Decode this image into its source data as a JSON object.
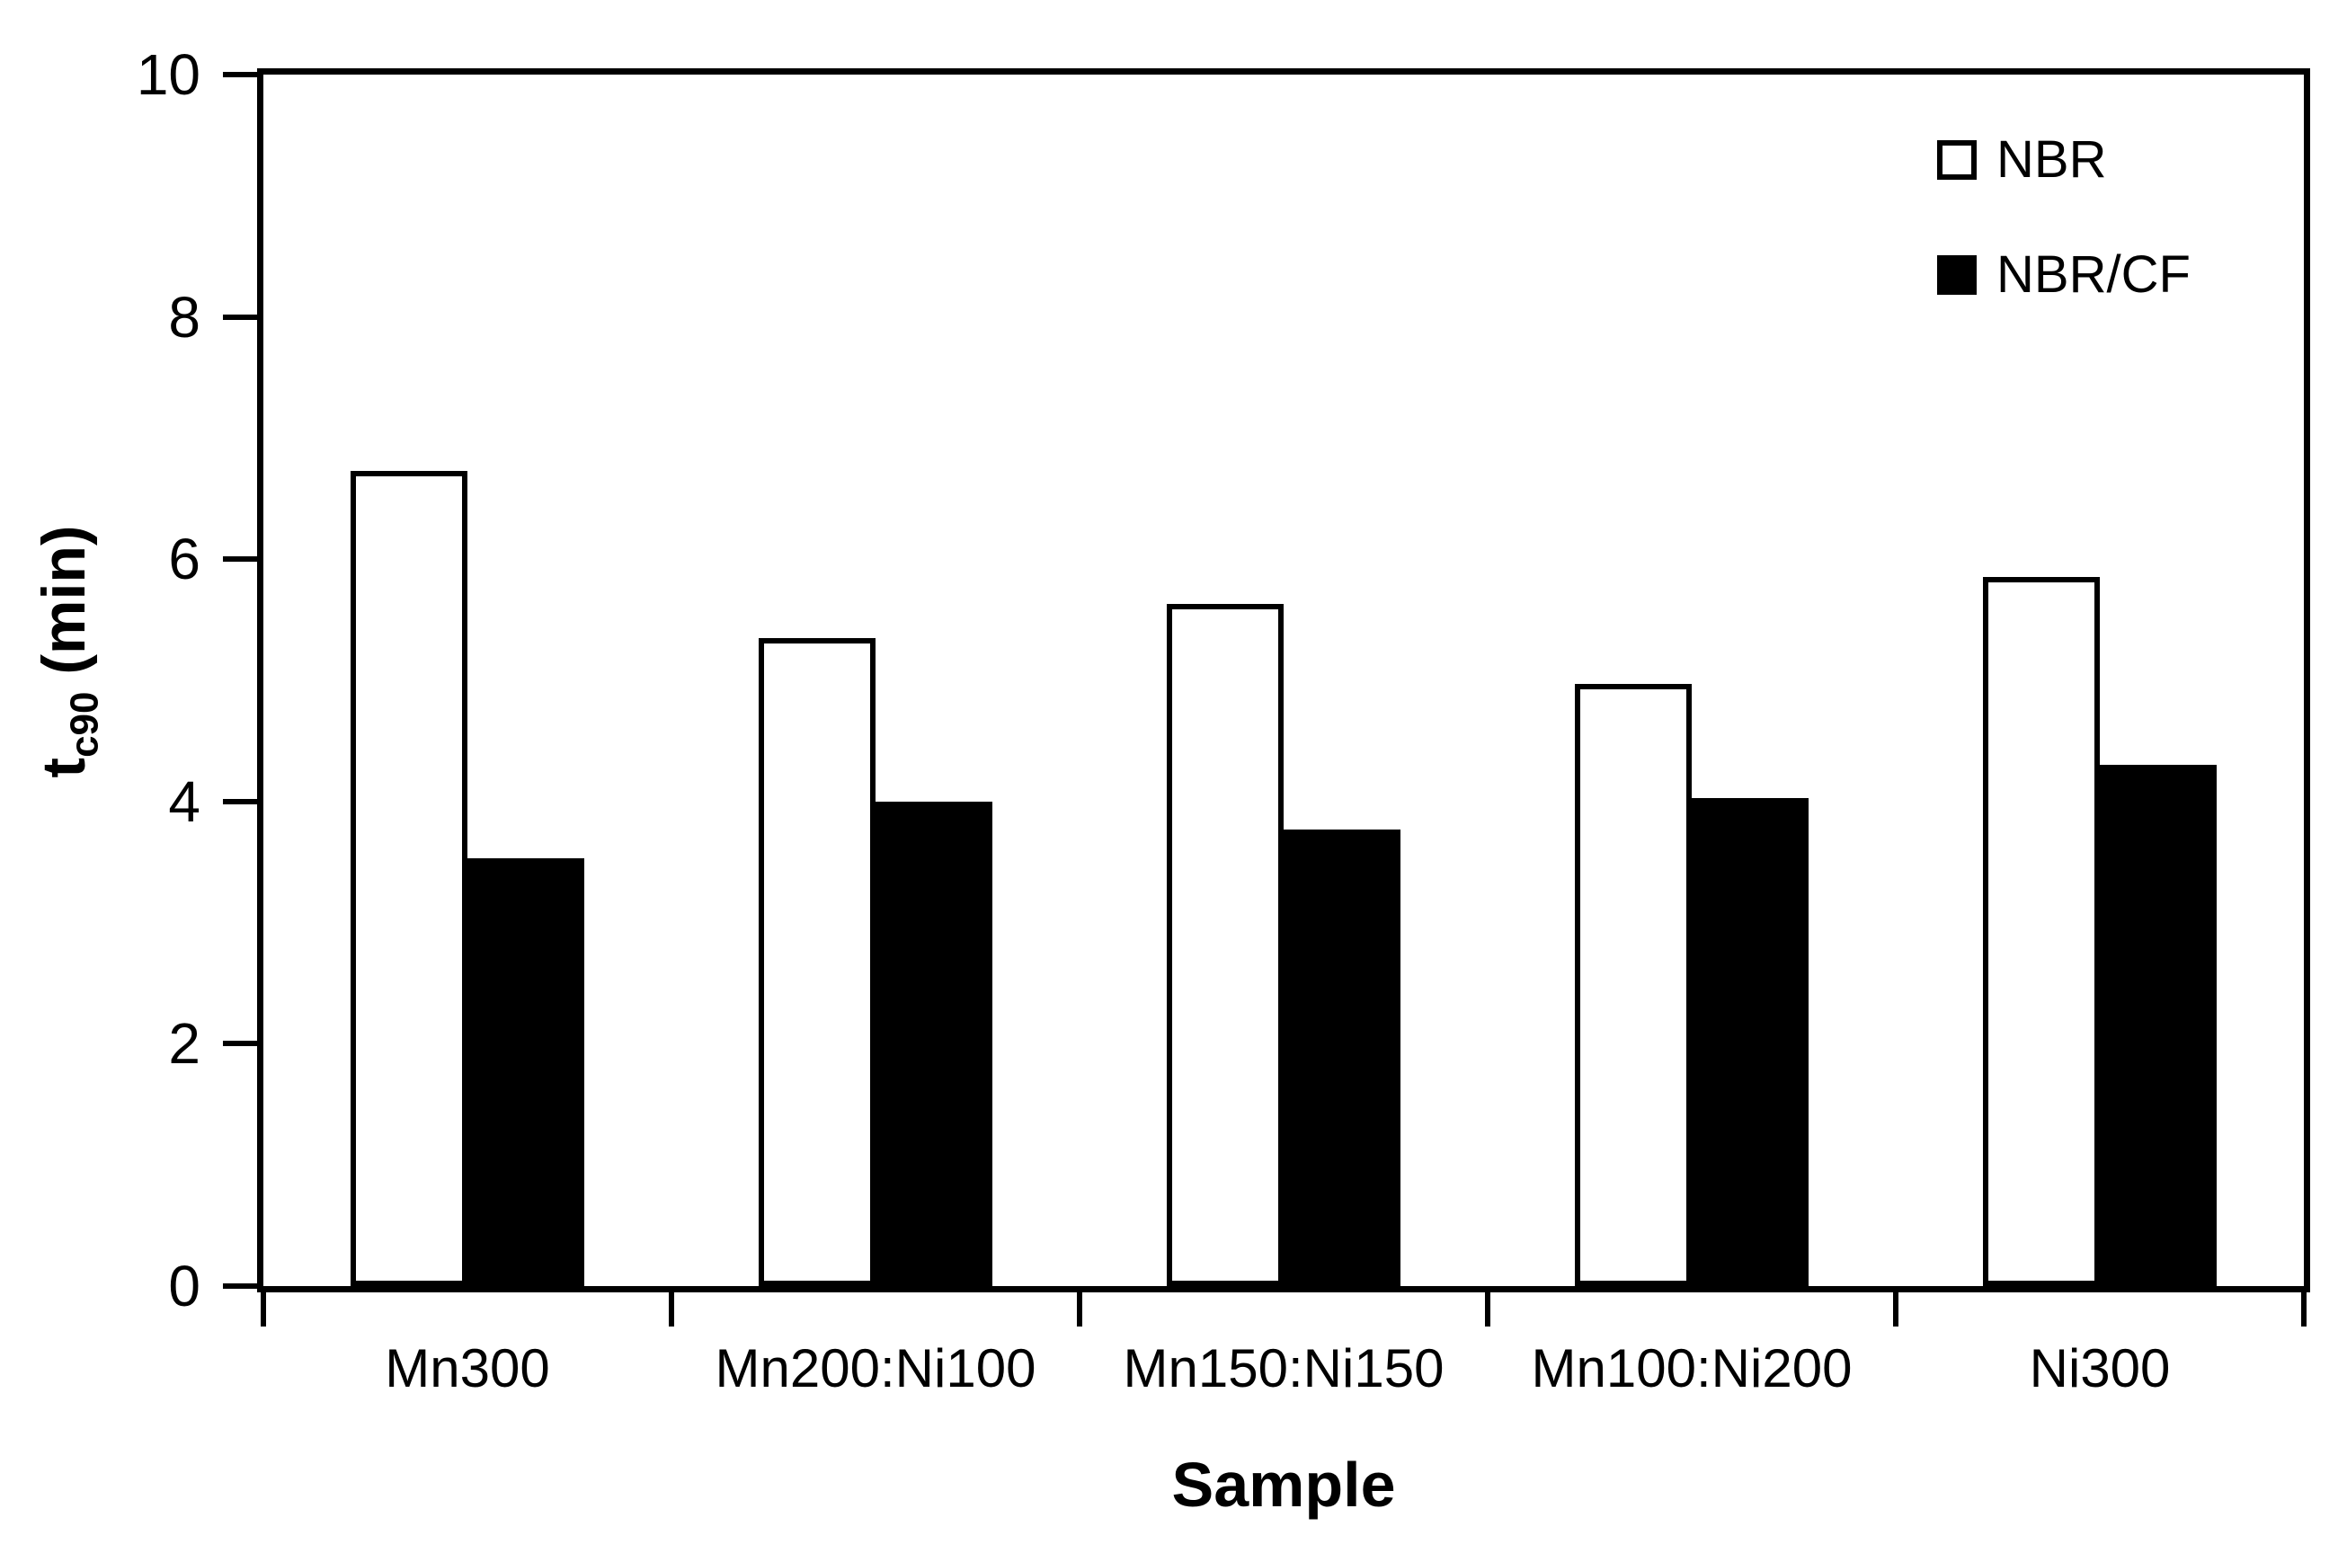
{
  "chart_data": {
    "type": "bar",
    "title": "",
    "categories": [
      "Mn300",
      "Mn200:Ni100",
      "Mn150:Ni150",
      "Mn100:Ni200",
      "Ni300"
    ],
    "series": [
      {
        "name": "NBR",
        "fill": "#ffffff",
        "outline": "#000000",
        "values": [
          6.73,
          5.35,
          5.63,
          4.97,
          5.85
        ]
      },
      {
        "name": "NBR/CF",
        "fill": "#000000",
        "outline": "#000000",
        "values": [
          3.53,
          4.0,
          3.77,
          4.03,
          4.3
        ]
      }
    ],
    "xlabel": "Sample",
    "ylabel_parts": {
      "base": "t",
      "sub": "c90",
      "rest": " (min)"
    },
    "ylim": [
      0,
      10
    ],
    "yticks": [
      0,
      2,
      4,
      6,
      8,
      10
    ],
    "grid": false,
    "legend_position": "top-right",
    "colors": {
      "axis": "#000000",
      "background": "#ffffff"
    }
  }
}
